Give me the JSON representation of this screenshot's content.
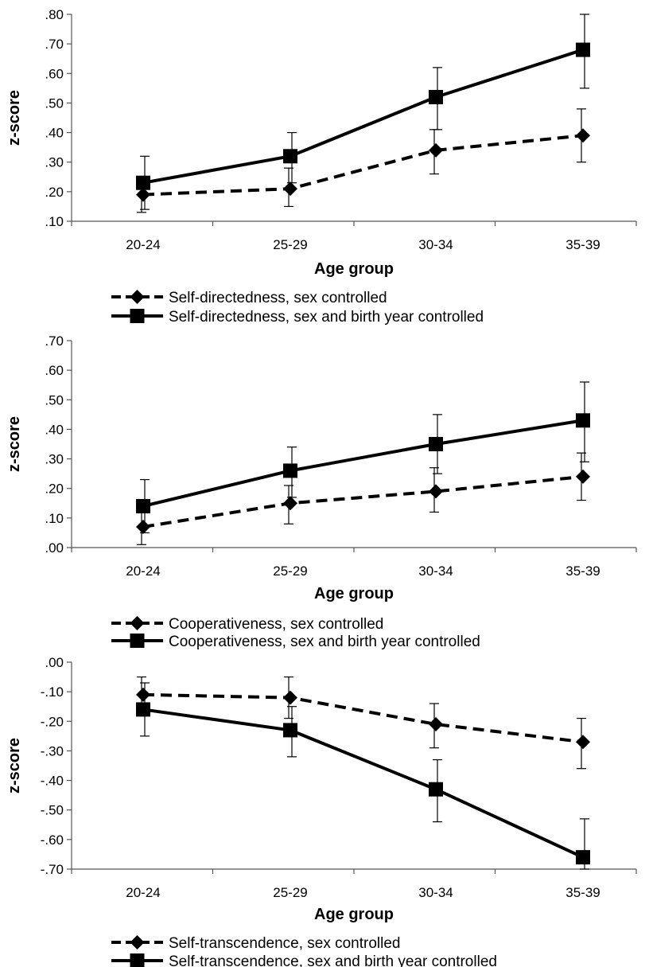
{
  "chart_data": [
    {
      "type": "line",
      "categories": [
        "20-24",
        "25-29",
        "30-34",
        "35-39"
      ],
      "xlabel": "Age group",
      "ylabel": "z-score",
      "ylim": [
        0.1,
        0.8
      ],
      "yticks": [
        ".10",
        ".20",
        ".30",
        ".40",
        ".50",
        ".60",
        ".70",
        ".80"
      ],
      "yticks_values": [
        0.1,
        0.2,
        0.3,
        0.4,
        0.5,
        0.6,
        0.7,
        0.8
      ],
      "legend_position": "bottom",
      "series": [
        {
          "name": "Self-directedness, sex controlled",
          "marker": "diamond",
          "line_style": "dashed",
          "values": [
            0.19,
            0.21,
            0.34,
            0.39
          ],
          "error_low": [
            0.13,
            0.15,
            0.26,
            0.3
          ],
          "error_high": [
            0.25,
            0.28,
            0.41,
            0.48
          ]
        },
        {
          "name": "Self-directedness, sex and birth year controlled",
          "marker": "square",
          "line_style": "solid",
          "values": [
            0.23,
            0.32,
            0.52,
            0.68
          ],
          "error_low": [
            0.14,
            0.23,
            0.41,
            0.55
          ],
          "error_high": [
            0.32,
            0.4,
            0.62,
            0.8
          ]
        }
      ]
    },
    {
      "type": "line",
      "categories": [
        "20-24",
        "25-29",
        "30-34",
        "35-39"
      ],
      "xlabel": "Age group",
      "ylabel": "z-score",
      "ylim": [
        0.0,
        0.7
      ],
      "yticks": [
        ".00",
        ".10",
        ".20",
        ".30",
        ".40",
        ".50",
        ".60",
        ".70"
      ],
      "yticks_values": [
        0.0,
        0.1,
        0.2,
        0.3,
        0.4,
        0.5,
        0.6,
        0.7
      ],
      "legend_position": "bottom",
      "series": [
        {
          "name": "Cooperativeness, sex controlled",
          "marker": "diamond",
          "line_style": "dashed",
          "values": [
            0.07,
            0.15,
            0.19,
            0.24
          ],
          "error_low": [
            0.01,
            0.08,
            0.12,
            0.16
          ],
          "error_high": [
            0.13,
            0.21,
            0.27,
            0.32
          ]
        },
        {
          "name": "Cooperativeness, sex and birth year controlled",
          "marker": "square",
          "line_style": "solid",
          "values": [
            0.14,
            0.26,
            0.35,
            0.43
          ],
          "error_low": [
            0.05,
            0.17,
            0.25,
            0.29
          ],
          "error_high": [
            0.23,
            0.34,
            0.45,
            0.56
          ]
        }
      ]
    },
    {
      "type": "line",
      "categories": [
        "20-24",
        "25-29",
        "30-34",
        "35-39"
      ],
      "xlabel": "Age group",
      "ylabel": "z-score",
      "ylim": [
        -0.7,
        0.0
      ],
      "yticks": [
        "-.70",
        "-.60",
        "-.50",
        "-.40",
        "-.30",
        "-.20",
        "-.10",
        ".00"
      ],
      "yticks_values": [
        -0.7,
        -0.6,
        -0.5,
        -0.4,
        -0.3,
        -0.2,
        -0.1,
        0.0
      ],
      "legend_position": "bottom",
      "series": [
        {
          "name": "Self-transcendence, sex controlled",
          "marker": "diamond",
          "line_style": "dashed",
          "values": [
            -0.11,
            -0.12,
            -0.21,
            -0.27
          ],
          "error_low": [
            -0.18,
            -0.19,
            -0.29,
            -0.36
          ],
          "error_high": [
            -0.05,
            -0.05,
            -0.14,
            -0.19
          ]
        },
        {
          "name": "Self-transcendence, sex and birth year controlled",
          "marker": "square",
          "line_style": "solid",
          "values": [
            -0.16,
            -0.23,
            -0.43,
            -0.66
          ],
          "error_low": [
            -0.25,
            -0.32,
            -0.54,
            -0.7
          ],
          "error_high": [
            -0.07,
            -0.15,
            -0.33,
            -0.53
          ]
        }
      ]
    }
  ]
}
